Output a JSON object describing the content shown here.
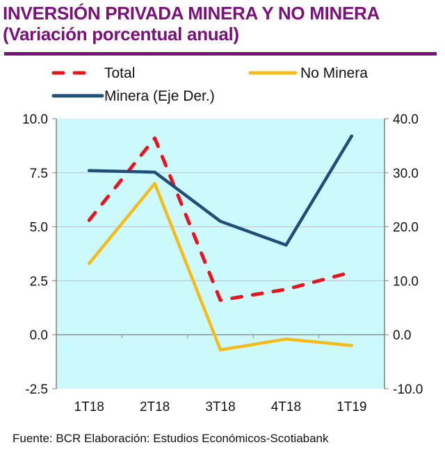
{
  "header": {
    "title": "INVERSIÓN PRIVADA MINERA Y NO MINERA",
    "subtitle": "(Variación porcentual anual)"
  },
  "source": "Fuente: BCR  Elaboración: Estudios Económicos-Scotiabank",
  "colors": {
    "title": "#7b0f7c",
    "plot_bg": "#ccf9fc",
    "total": "#e8141c",
    "no_minera": "#f5bb1a",
    "minera": "#1f4e79"
  },
  "chart_data": {
    "type": "line",
    "title": "INVERSIÓN PRIVADA MINERA Y NO MINERA",
    "subtitle": "(Variación porcentual anual)",
    "categories": [
      "1T18",
      "2T18",
      "3T18",
      "4T18",
      "1T19"
    ],
    "series": [
      {
        "name": "Total",
        "axis": "left",
        "style": "dashed",
        "color": "#e8141c",
        "values": [
          5.3,
          9.1,
          1.6,
          2.1,
          2.9
        ]
      },
      {
        "name": "No Minera",
        "axis": "left",
        "style": "solid",
        "color": "#f5bb1a",
        "values": [
          3.3,
          7.0,
          -0.7,
          -0.2,
          -0.5
        ]
      },
      {
        "name": "Minera (Eje Der.)",
        "axis": "right",
        "style": "solid",
        "color": "#1f4e79",
        "values": [
          30.4,
          30.1,
          21.0,
          16.6,
          36.8
        ]
      }
    ],
    "y_left": {
      "ylim": [
        -2.5,
        10.0
      ],
      "ticks": [
        "10.0",
        "7.5",
        "5.0",
        "2.5",
        "0.0",
        "-2.5"
      ],
      "tick_values": [
        10,
        7.5,
        5,
        2.5,
        0,
        -2.5
      ]
    },
    "y_right": {
      "ylim": [
        -10.0,
        40.0
      ],
      "ticks": [
        "40.0",
        "30.0",
        "20.0",
        "10.0",
        "0.0",
        "-10.0"
      ],
      "tick_values": [
        40,
        30,
        20,
        10,
        0,
        -10
      ]
    },
    "xlabel": "",
    "ylabel": "",
    "grid": true,
    "legend": {
      "placement": "top",
      "entries": [
        "Total",
        "No Minera",
        "Minera (Eje Der.)"
      ]
    }
  }
}
